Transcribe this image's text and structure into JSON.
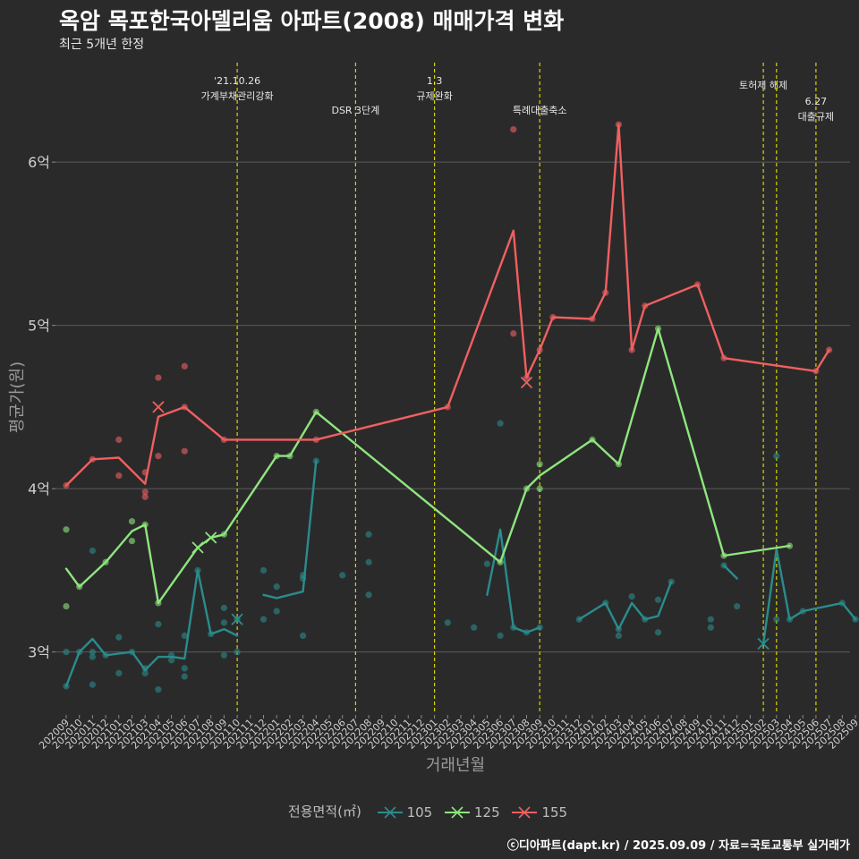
{
  "title": "옥암 목포한국아델리움 아파트(2008) 매매가격 변화",
  "subtitle": "최근 5개년 한정",
  "caption": "ⓒ디아파트(dapt.kr) / 2025.09.09 / 자료=국토교통부 실거래가",
  "legend": {
    "title": "전용면적(㎡)",
    "items": [
      {
        "label": "105",
        "color": "#2a8c8c"
      },
      {
        "label": "125",
        "color": "#8ee67e"
      },
      {
        "label": "155",
        "color": "#f06060"
      }
    ]
  },
  "chart_data": {
    "type": "line",
    "xlabel": "거래년월",
    "ylabel": "평균가(원)",
    "ylim": [
      2.62,
      6.62
    ],
    "yticks": [
      {
        "v": 3,
        "label": "3억"
      },
      {
        "v": 4,
        "label": "4억"
      },
      {
        "v": 5,
        "label": "5억"
      },
      {
        "v": 6,
        "label": "6억"
      }
    ],
    "x_categories": [
      "202009",
      "202010",
      "202011",
      "202012",
      "202101",
      "202102",
      "202103",
      "202104",
      "202105",
      "202106",
      "202107",
      "202108",
      "202109",
      "202110",
      "202111",
      "202112",
      "202201",
      "202202",
      "202203",
      "202204",
      "202205",
      "202206",
      "202207",
      "202208",
      "202209",
      "202210",
      "202211",
      "202212",
      "202301",
      "202302",
      "202303",
      "202304",
      "202305",
      "202306",
      "202307",
      "202308",
      "202309",
      "202310",
      "202311",
      "202312",
      "202401",
      "202402",
      "202403",
      "202404",
      "202405",
      "202406",
      "202407",
      "202408",
      "202409",
      "202410",
      "202411",
      "202412",
      "202501",
      "202502",
      "202503",
      "202504",
      "202505",
      "202506",
      "202507",
      "202508",
      "202509"
    ],
    "events": [
      {
        "x": "202110",
        "label": [
          "'21.10.26",
          "가계부채관리강화"
        ],
        "level": 0
      },
      {
        "x": "202207",
        "label": [
          "DSR 3단계"
        ],
        "level": 2
      },
      {
        "x": "202301",
        "label": [
          "1.3",
          "규제완화"
        ],
        "level": 0
      },
      {
        "x": "202309",
        "label": [
          "특례대출축소"
        ],
        "level": 2
      },
      {
        "x": "202502",
        "label": [
          "토허제 해제"
        ],
        "level": 1
      },
      {
        "x": "202503",
        "label": [],
        "level": 1
      },
      {
        "x": "202506",
        "label": [
          "6.27",
          "대출규제"
        ],
        "level": 3
      }
    ],
    "series": [
      {
        "name": "105",
        "color": "#2a8c8c",
        "segments": [
          [
            [
              0,
              2.79
            ],
            [
              1,
              3.0
            ],
            [
              2,
              3.08
            ],
            [
              3,
              2.98
            ],
            [
              5,
              3.0
            ],
            [
              6,
              2.89
            ],
            [
              7,
              2.97
            ],
            [
              8,
              2.97
            ],
            [
              9,
              2.96
            ],
            [
              10,
              3.5
            ],
            [
              11,
              3.11
            ],
            [
              12,
              3.14
            ],
            [
              13,
              3.1
            ]
          ],
          [
            [
              15,
              3.35
            ],
            [
              16,
              3.33
            ],
            [
              18,
              3.37
            ],
            [
              19,
              4.17
            ]
          ],
          [
            [
              32,
              3.35
            ],
            [
              33,
              3.75
            ],
            [
              34,
              3.15
            ],
            [
              35,
              3.12
            ],
            [
              36,
              3.15
            ]
          ],
          [
            [
              39,
              3.2
            ],
            [
              41,
              3.3
            ],
            [
              42,
              3.14
            ],
            [
              43,
              3.3
            ],
            [
              44,
              3.2
            ],
            [
              45,
              3.22
            ],
            [
              46,
              3.43
            ]
          ],
          [
            [
              50,
              3.53
            ],
            [
              51,
              3.45
            ]
          ],
          [
            [
              53,
              3.05
            ],
            [
              54,
              3.63
            ],
            [
              55,
              3.2
            ],
            [
              56,
              3.25
            ],
            [
              59,
              3.3
            ],
            [
              60,
              3.2
            ]
          ]
        ],
        "points": [
          [
            0,
            2.79
          ],
          [
            0,
            3.0
          ],
          [
            1,
            3.0
          ],
          [
            2,
            2.8
          ],
          [
            2,
            3.0
          ],
          [
            2,
            2.97
          ],
          [
            2,
            3.62
          ],
          [
            3,
            2.98
          ],
          [
            4,
            2.87
          ],
          [
            4,
            3.09
          ],
          [
            5,
            3.0
          ],
          [
            6,
            2.87
          ],
          [
            6,
            2.9
          ],
          [
            7,
            2.77
          ],
          [
            7,
            3.17
          ],
          [
            8,
            2.95
          ],
          [
            8,
            2.98
          ],
          [
            9,
            2.85
          ],
          [
            9,
            2.9
          ],
          [
            9,
            3.1
          ],
          [
            10,
            3.5
          ],
          [
            11,
            3.11
          ],
          [
            12,
            3.18
          ],
          [
            12,
            3.27
          ],
          [
            12,
            2.98
          ],
          [
            13,
            3.0
          ],
          [
            13,
            3.2
          ],
          [
            15,
            3.2
          ],
          [
            15,
            3.5
          ],
          [
            16,
            3.25
          ],
          [
            16,
            3.4
          ],
          [
            18,
            3.1
          ],
          [
            18,
            3.45
          ],
          [
            18,
            3.47
          ],
          [
            19,
            4.17
          ],
          [
            21,
            3.47
          ],
          [
            23,
            3.35
          ],
          [
            23,
            3.55
          ],
          [
            23,
            3.72
          ],
          [
            29,
            3.18
          ],
          [
            31,
            3.15
          ],
          [
            32,
            3.54
          ],
          [
            33,
            3.1
          ],
          [
            33,
            4.4
          ],
          [
            34,
            3.15
          ],
          [
            35,
            3.12
          ],
          [
            36,
            3.15
          ],
          [
            39,
            3.2
          ],
          [
            41,
            3.3
          ],
          [
            42,
            3.1
          ],
          [
            42,
            3.14
          ],
          [
            43,
            3.34
          ],
          [
            44,
            3.2
          ],
          [
            45,
            3.12
          ],
          [
            45,
            3.32
          ],
          [
            46,
            3.43
          ],
          [
            49,
            3.15
          ],
          [
            49,
            3.2
          ],
          [
            50,
            3.53
          ],
          [
            51,
            3.28
          ],
          [
            54,
            4.2
          ],
          [
            54,
            3.2
          ],
          [
            55,
            3.2
          ],
          [
            56,
            3.25
          ],
          [
            59,
            3.3
          ],
          [
            60,
            3.2
          ]
        ],
        "crosses": [
          [
            13,
            3.2
          ],
          [
            53,
            3.05
          ]
        ]
      },
      {
        "name": "125",
        "color": "#8ee67e",
        "segments": [
          [
            [
              0,
              3.51
            ],
            [
              1,
              3.4
            ],
            [
              3,
              3.55
            ],
            [
              5,
              3.74
            ],
            [
              6,
              3.78
            ],
            [
              7,
              3.3
            ],
            [
              10,
              3.64
            ],
            [
              11,
              3.7
            ],
            [
              12,
              3.72
            ],
            [
              16,
              4.2
            ],
            [
              17,
              4.2
            ],
            [
              19,
              4.47
            ],
            [
              33,
              3.55
            ],
            [
              35,
              4.0
            ],
            [
              36,
              4.08
            ],
            [
              40,
              4.3
            ],
            [
              42,
              4.15
            ],
            [
              45,
              4.98
            ],
            [
              50,
              3.59
            ],
            [
              55,
              3.65
            ]
          ]
        ],
        "points": [
          [
            0,
            3.75
          ],
          [
            0,
            3.28
          ],
          [
            1,
            3.4
          ],
          [
            3,
            3.55
          ],
          [
            5,
            3.68
          ],
          [
            5,
            3.8
          ],
          [
            6,
            3.78
          ],
          [
            7,
            3.3
          ],
          [
            12,
            3.72
          ],
          [
            16,
            4.2
          ],
          [
            17,
            4.2
          ],
          [
            19,
            4.47
          ],
          [
            33,
            3.55
          ],
          [
            35,
            4.0
          ],
          [
            36,
            4.0
          ],
          [
            36,
            4.15
          ],
          [
            40,
            4.3
          ],
          [
            42,
            4.15
          ],
          [
            45,
            4.98
          ],
          [
            50,
            3.59
          ],
          [
            55,
            3.65
          ]
        ],
        "crosses": [
          [
            10,
            3.64
          ],
          [
            11,
            3.7
          ]
        ]
      },
      {
        "name": "155",
        "color": "#f06060",
        "segments": [
          [
            [
              0,
              4.02
            ],
            [
              2,
              4.18
            ],
            [
              4,
              4.19
            ],
            [
              6,
              4.03
            ],
            [
              7,
              4.44
            ],
            [
              9,
              4.5
            ],
            [
              12,
              4.3
            ],
            [
              19,
              4.3
            ],
            [
              29,
              4.5
            ],
            [
              34,
              5.58
            ],
            [
              35,
              4.68
            ],
            [
              36,
              4.85
            ],
            [
              37,
              5.05
            ],
            [
              40,
              5.04
            ],
            [
              41,
              5.2
            ],
            [
              42,
              6.23
            ],
            [
              43,
              4.85
            ],
            [
              44,
              5.12
            ],
            [
              48,
              5.25
            ],
            [
              50,
              4.8
            ],
            [
              57,
              4.72
            ],
            [
              58,
              4.85
            ]
          ]
        ],
        "points": [
          [
            0,
            4.02
          ],
          [
            2,
            4.18
          ],
          [
            4,
            4.3
          ],
          [
            4,
            4.08
          ],
          [
            6,
            4.1
          ],
          [
            6,
            3.98
          ],
          [
            6,
            3.95
          ],
          [
            7,
            4.68
          ],
          [
            7,
            4.2
          ],
          [
            9,
            4.75
          ],
          [
            9,
            4.5
          ],
          [
            9,
            4.23
          ],
          [
            12,
            4.3
          ],
          [
            19,
            4.3
          ],
          [
            29,
            4.5
          ],
          [
            34,
            6.2
          ],
          [
            34,
            4.95
          ],
          [
            35,
            4.68
          ],
          [
            36,
            4.85
          ],
          [
            37,
            5.05
          ],
          [
            40,
            5.04
          ],
          [
            41,
            5.2
          ],
          [
            42,
            6.23
          ],
          [
            43,
            4.85
          ],
          [
            44,
            5.12
          ],
          [
            48,
            5.25
          ],
          [
            50,
            4.8
          ],
          [
            57,
            4.72
          ],
          [
            58,
            4.85
          ]
        ],
        "crosses": [
          [
            7,
            4.5
          ],
          [
            35,
            4.65
          ]
        ]
      }
    ]
  }
}
